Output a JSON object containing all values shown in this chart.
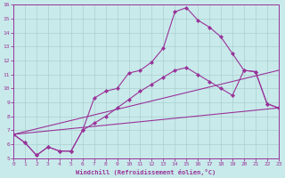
{
  "xlabel": "Windchill (Refroidissement éolien,°C)",
  "bg_color": "#c8eaea",
  "grid_color": "#aacfcf",
  "line_color": "#993399",
  "xlim": [
    0,
    23
  ],
  "ylim": [
    5,
    16
  ],
  "xticks": [
    0,
    1,
    2,
    3,
    4,
    5,
    6,
    7,
    8,
    9,
    10,
    11,
    12,
    13,
    14,
    15,
    16,
    17,
    18,
    19,
    20,
    21,
    22,
    23
  ],
  "yticks": [
    5,
    6,
    7,
    8,
    9,
    10,
    11,
    12,
    13,
    14,
    15,
    16
  ],
  "line1_x": [
    0,
    1,
    2,
    3,
    4,
    5,
    6,
    7,
    8,
    9,
    10,
    11,
    12,
    13,
    14,
    15,
    16,
    17,
    18,
    19,
    20,
    21,
    22,
    23
  ],
  "line1_y": [
    6.7,
    6.1,
    5.2,
    5.8,
    5.5,
    5.5,
    7.0,
    9.3,
    9.8,
    10.0,
    11.1,
    11.3,
    11.9,
    12.9,
    15.5,
    15.8,
    14.9,
    14.4,
    13.7,
    12.5,
    11.3,
    11.2,
    8.9,
    8.6
  ],
  "line2_x": [
    0,
    1,
    2,
    3,
    4,
    5,
    6,
    7,
    8,
    9,
    10,
    11,
    12,
    13,
    14,
    15,
    16,
    17,
    18,
    19,
    20,
    21,
    22,
    23
  ],
  "line2_y": [
    6.7,
    6.1,
    5.2,
    5.8,
    5.5,
    5.5,
    7.0,
    7.5,
    8.0,
    8.6,
    9.2,
    9.8,
    10.3,
    10.8,
    11.3,
    11.5,
    11.0,
    10.5,
    10.0,
    9.5,
    11.3,
    11.2,
    8.9,
    8.6
  ],
  "line3_x": [
    0,
    23
  ],
  "line3_y": [
    6.7,
    11.3
  ],
  "line4_x": [
    0,
    23
  ],
  "line4_y": [
    6.7,
    8.6
  ]
}
